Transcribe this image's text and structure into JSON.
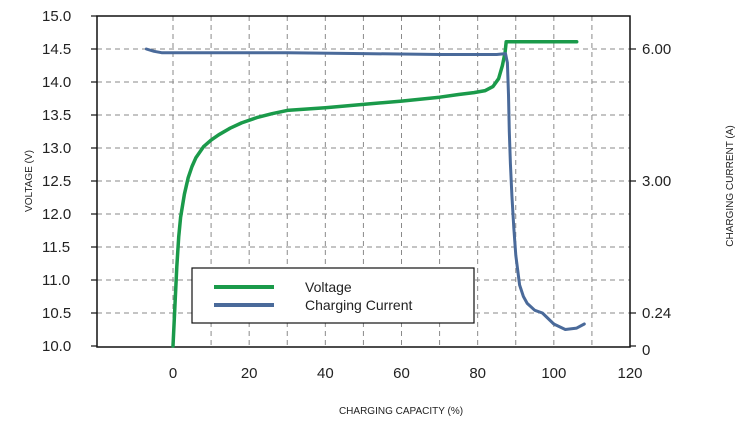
{
  "chart_data": {
    "type": "line",
    "title": "",
    "xlabel": "CHARGING CAPACITY (%)",
    "ylabel": "VOLTAGE (V)",
    "y2label": "CHARGING CURRENT (A)",
    "xlim": [
      -20,
      120
    ],
    "ylim": [
      10.0,
      15.0
    ],
    "x_ticks": [
      0,
      20,
      40,
      60,
      80,
      100,
      120
    ],
    "y_ticks": [
      "10.0",
      "10.5",
      "11.0",
      "11.5",
      "12.0",
      "12.5",
      "13.0",
      "13.5",
      "14.0",
      "14.5",
      "15.0"
    ],
    "y2_ticks": [
      {
        "label": "6.00",
        "at_voltage": 14.5
      },
      {
        "label": "3.00",
        "at_voltage": 12.5
      },
      {
        "label": "0.24",
        "at_voltage": 10.5
      },
      {
        "label": "0",
        "at_voltage": 10.0
      }
    ],
    "grid": true,
    "legend_position": "lower-center",
    "series": [
      {
        "name": "Voltage",
        "color": "#1a9a4a",
        "axis": "left",
        "x": [
          0,
          0.5,
          1,
          1.5,
          2,
          3,
          4,
          5,
          6,
          8,
          10,
          12,
          15,
          18,
          22,
          26,
          30,
          40,
          50,
          60,
          70,
          75,
          79,
          82,
          84,
          85.5,
          86.5,
          87.2,
          87.5,
          88,
          90,
          95,
          100,
          106
        ],
        "values": [
          10.0,
          10.6,
          11.2,
          11.65,
          11.95,
          12.3,
          12.55,
          12.72,
          12.85,
          13.02,
          13.12,
          13.2,
          13.3,
          13.38,
          13.46,
          13.52,
          13.57,
          13.61,
          13.66,
          13.71,
          13.77,
          13.81,
          13.84,
          13.87,
          13.93,
          14.05,
          14.25,
          14.45,
          14.61,
          14.61,
          14.61,
          14.61,
          14.61,
          14.61
        ]
      },
      {
        "name": "Charging Current",
        "color": "#4a6a9a",
        "axis": "right",
        "x": [
          -7,
          -5,
          -3,
          0,
          10,
          30,
          50,
          70,
          85,
          87.3,
          87.8,
          88.1,
          88.3,
          88.6,
          89,
          89.5,
          90,
          91,
          92,
          93,
          95,
          97,
          100,
          103,
          106,
          108
        ],
        "values": [
          6.0,
          5.95,
          5.92,
          5.92,
          5.92,
          5.92,
          5.9,
          5.88,
          5.88,
          5.9,
          5.7,
          5.0,
          4.2,
          3.5,
          2.8,
          2.1,
          1.5,
          0.85,
          0.6,
          0.45,
          0.3,
          0.24,
          0.16,
          0.12,
          0.13,
          0.16
        ]
      }
    ]
  }
}
